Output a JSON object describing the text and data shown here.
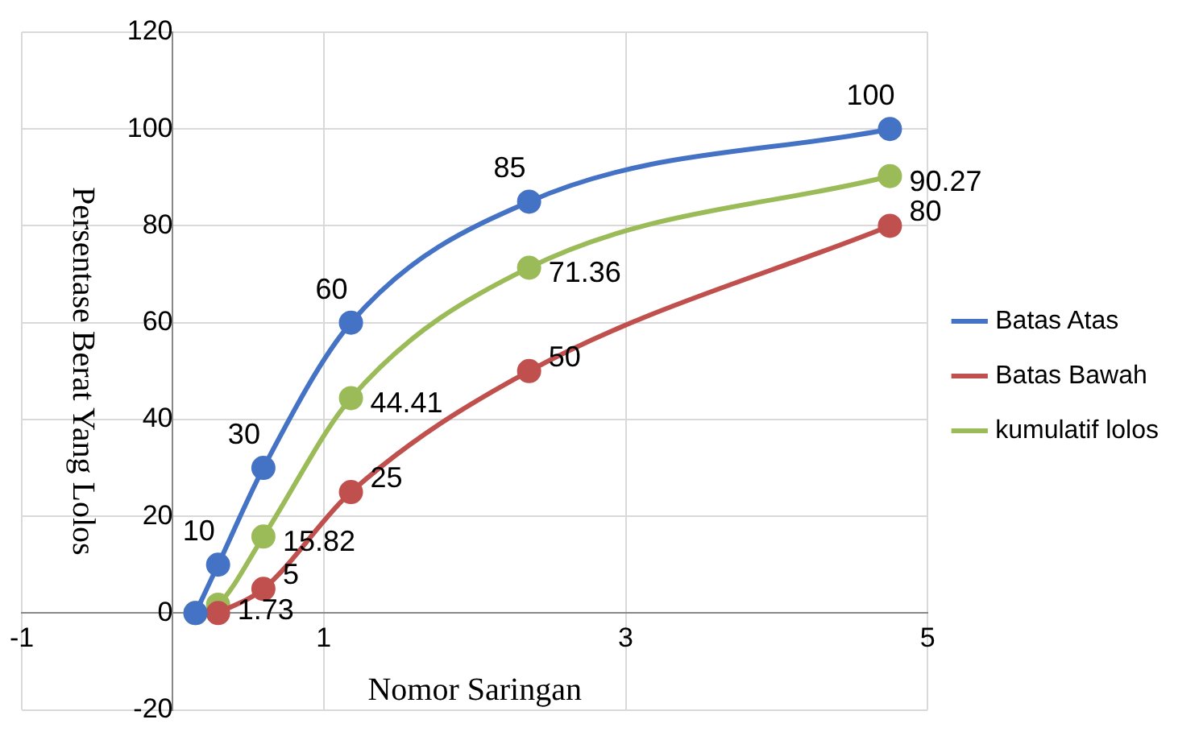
{
  "chart_data": {
    "type": "line",
    "xlabel": "Nomor Saringan",
    "ylabel": "Persentase Berat Yang Lolos",
    "xlim": [
      -1,
      5
    ],
    "xticks": [
      -1,
      1,
      3,
      5
    ],
    "ylim": [
      -20,
      120
    ],
    "yticks": [
      -20,
      0,
      20,
      40,
      60,
      80,
      100,
      120
    ],
    "grid": true,
    "legend": "right",
    "marker": "circle",
    "series": [
      {
        "name": "Batas Atas",
        "color": "#4472c4",
        "x": [
          0.15,
          0.3,
          0.6,
          1.18,
          2.36,
          4.75
        ],
        "values": [
          0,
          10,
          30,
          60,
          85,
          100
        ],
        "value_labels": [
          null,
          "10",
          "30",
          "60",
          "85",
          "100"
        ]
      },
      {
        "name": "Batas Bawah",
        "color": "#c0504d",
        "x": [
          0.3,
          0.6,
          1.18,
          2.36,
          4.75
        ],
        "values": [
          0,
          5,
          25,
          50,
          80
        ],
        "value_labels": [
          null,
          "5",
          "25",
          "50",
          "80"
        ]
      },
      {
        "name": "kumulatif lolos",
        "color": "#9bbb59",
        "x": [
          0.15,
          0.3,
          0.6,
          1.18,
          2.36,
          4.75
        ],
        "values": [
          0,
          1.73,
          15.82,
          44.41,
          71.36,
          90.27
        ],
        "value_labels": [
          null,
          "1.73",
          "15.82",
          "44.41",
          "71.36",
          "90.27"
        ]
      }
    ]
  }
}
